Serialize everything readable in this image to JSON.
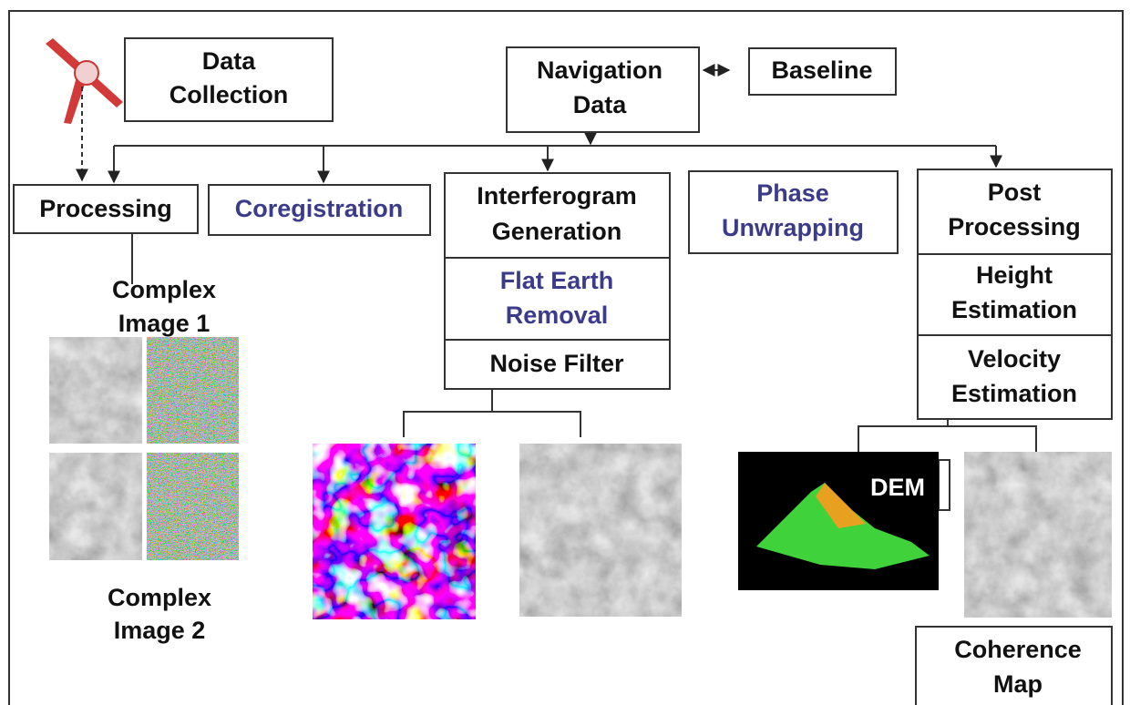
{
  "nodes": [
    {
      "lines": [
        "Data",
        "Collection"
      ]
    },
    {
      "lines": [
        "Navigation",
        "Data"
      ]
    },
    {
      "lines": [
        "Baseline"
      ]
    },
    {
      "lines": [
        "Processing"
      ]
    },
    {
      "lines": [
        "Coregistration"
      ]
    },
    {
      "lines": [
        "Interferogram",
        "Generation"
      ]
    },
    {
      "lines": [
        "Flat Earth",
        "Removal"
      ]
    },
    {
      "lines": [
        "Noise Filter"
      ]
    },
    {
      "lines": [
        "Phase",
        "Unwrapping"
      ]
    },
    {
      "lines": [
        "Post",
        "Processing"
      ]
    },
    {
      "lines": [
        "Height",
        "Estimation"
      ]
    },
    {
      "lines": [
        "Velocity",
        "Estimation"
      ]
    },
    {
      "lines": [
        "Coherence",
        "Map"
      ]
    }
  ],
  "image_labels": [
    {
      "lines": [
        "Complex",
        "Image 1"
      ]
    },
    {
      "lines": [
        "Complex",
        "Image 2"
      ]
    },
    {
      "lines": [
        "DEM"
      ]
    }
  ]
}
